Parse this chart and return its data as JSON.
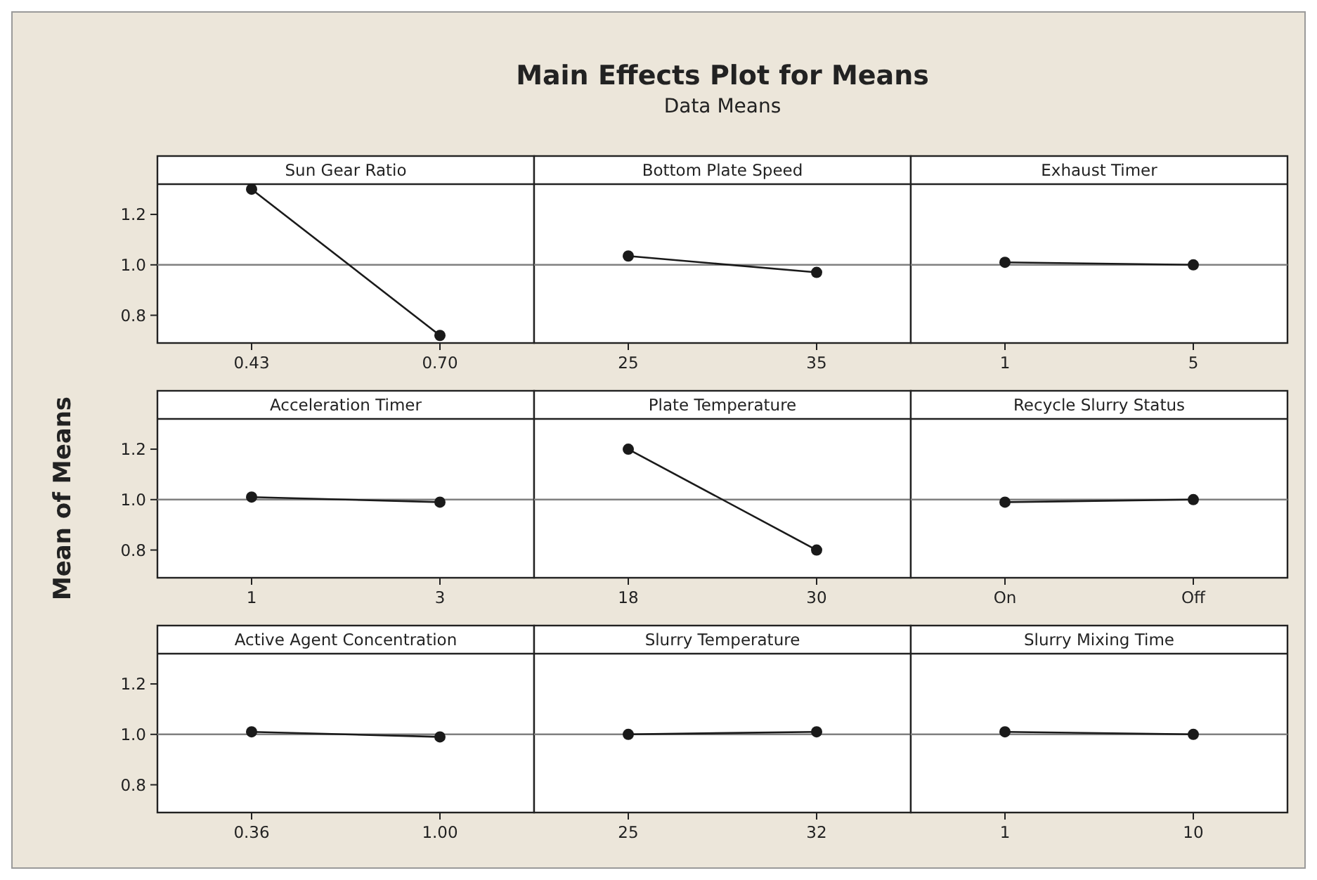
{
  "chart_data": [
    {
      "type": "other",
      "title": "Main Effects Plot for Means",
      "subtitle": "Data Means"
    },
    {
      "type": "line",
      "title": "Sun Gear Ratio",
      "categories": [
        "0.43",
        "0.70"
      ],
      "values": [
        1.3,
        0.72
      ],
      "color": "#1a1a1a",
      "marker": "circle",
      "ylim": [
        0.69,
        1.32
      ],
      "yticks": [
        {
          "value": 0.8,
          "label": "0.8"
        },
        {
          "value": 1.0,
          "label": "1.0"
        },
        {
          "value": 1.2,
          "label": "1.2"
        }
      ],
      "ref_lines": [
        {
          "axis": "y",
          "value": 1.0,
          "color": "#808080"
        }
      ]
    },
    {
      "type": "line",
      "title": "Bottom Plate Speed",
      "categories": [
        "25",
        "35"
      ],
      "values": [
        1.035,
        0.97
      ],
      "color": "#1a1a1a",
      "marker": "circle",
      "ylim": [
        0.69,
        1.32
      ],
      "tick_labels": "x",
      "ref_lines": [
        {
          "axis": "y",
          "value": 1.0,
          "color": "#808080"
        }
      ]
    },
    {
      "type": "line",
      "title": "Exhaust Timer",
      "categories": [
        "1",
        "5"
      ],
      "values": [
        1.01,
        1.0
      ],
      "color": "#1a1a1a",
      "marker": "circle",
      "ylim": [
        0.69,
        1.32
      ],
      "tick_labels": "x",
      "ref_lines": [
        {
          "axis": "y",
          "value": 1.0,
          "color": "#808080"
        }
      ]
    },
    {
      "type": "line",
      "title": "Acceleration Timer",
      "ylabel": "Mean of Means",
      "categories": [
        "1",
        "3"
      ],
      "values": [
        1.01,
        0.99
      ],
      "color": "#1a1a1a",
      "marker": "circle",
      "ylim": [
        0.69,
        1.32
      ],
      "yticks": [
        {
          "value": 0.8,
          "label": "0.8"
        },
        {
          "value": 1.0,
          "label": "1.0"
        },
        {
          "value": 1.2,
          "label": "1.2"
        }
      ],
      "ref_lines": [
        {
          "axis": "y",
          "value": 1.0,
          "color": "#808080"
        }
      ]
    },
    {
      "type": "line",
      "title": "Plate Temperature",
      "categories": [
        "18",
        "30"
      ],
      "values": [
        1.2,
        0.8
      ],
      "color": "#1a1a1a",
      "marker": "circle",
      "ylim": [
        0.69,
        1.32
      ],
      "tick_labels": "x",
      "ref_lines": [
        {
          "axis": "y",
          "value": 1.0,
          "color": "#808080"
        }
      ]
    },
    {
      "type": "line",
      "title": "Recycle Slurry Status",
      "categories": [
        "On",
        "Off"
      ],
      "values": [
        0.99,
        1.0
      ],
      "color": "#1a1a1a",
      "marker": "circle",
      "ylim": [
        0.69,
        1.32
      ],
      "tick_labels": "x",
      "ref_lines": [
        {
          "axis": "y",
          "value": 1.0,
          "color": "#808080"
        }
      ]
    },
    {
      "type": "line",
      "title": "Active Agent Concentration",
      "categories": [
        "0.36",
        "1.00"
      ],
      "values": [
        1.01,
        0.99
      ],
      "color": "#1a1a1a",
      "marker": "circle",
      "ylim": [
        0.69,
        1.32
      ],
      "yticks": [
        {
          "value": 0.8,
          "label": "0.8"
        },
        {
          "value": 1.0,
          "label": "1.0"
        },
        {
          "value": 1.2,
          "label": "1.2"
        }
      ],
      "ref_lines": [
        {
          "axis": "y",
          "value": 1.0,
          "color": "#808080"
        }
      ]
    },
    {
      "type": "line",
      "title": "Slurry Temperature",
      "categories": [
        "25",
        "32"
      ],
      "values": [
        1.0,
        1.01
      ],
      "color": "#1a1a1a",
      "marker": "circle",
      "ylim": [
        0.69,
        1.32
      ],
      "tick_labels": "x",
      "ref_lines": [
        {
          "axis": "y",
          "value": 1.0,
          "color": "#808080"
        }
      ]
    },
    {
      "type": "line",
      "title": "Slurry Mixing Time",
      "categories": [
        "1",
        "10"
      ],
      "values": [
        1.01,
        1.0
      ],
      "color": "#1a1a1a",
      "marker": "circle",
      "ylim": [
        0.69,
        1.32
      ],
      "tick_labels": "x",
      "ref_lines": [
        {
          "axis": "y",
          "value": 1.0,
          "color": "#808080"
        }
      ]
    }
  ]
}
